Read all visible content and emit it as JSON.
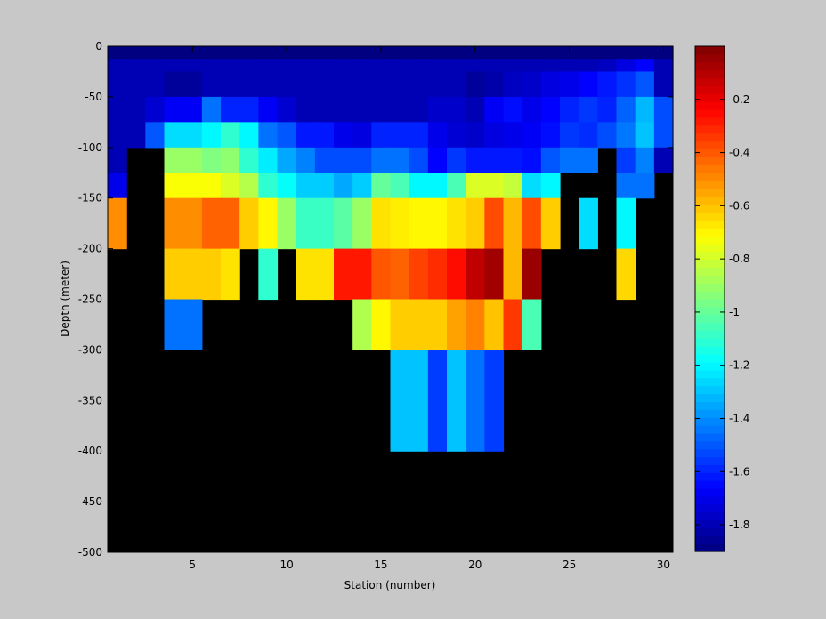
{
  "chart_data": {
    "type": "heatmap",
    "title": "",
    "xlabel": "Station (number)",
    "ylabel": "Depth (meter)",
    "xlim": [
      1,
      31
    ],
    "ylim": [
      -500,
      0
    ],
    "x_ticks": [
      5,
      10,
      15,
      20,
      25,
      30
    ],
    "y_ticks": [
      0,
      -50,
      -100,
      -150,
      -200,
      -250,
      -300,
      -350,
      -400,
      -450,
      -500
    ],
    "colorbar": {
      "colormap": "jet",
      "clim": [
        -1.9,
        0
      ],
      "ticks": [
        -0.2,
        -0.4,
        -0.6,
        -0.8,
        -1,
        -1.2,
        -1.4,
        -1.6,
        -1.8
      ],
      "placement": "right"
    },
    "background_color": "#000000",
    "grid": false,
    "depth_bins": [
      0,
      -12.5,
      -25,
      -50,
      -75,
      -100,
      -125,
      -150,
      -200,
      -250,
      -300,
      -400
    ],
    "stations": [
      1,
      2,
      3,
      4,
      5,
      6,
      7,
      8,
      9,
      10,
      11,
      12,
      13,
      14,
      15,
      16,
      17,
      18,
      19,
      20,
      21,
      22,
      23,
      24,
      25,
      26,
      27,
      28,
      29,
      30
    ],
    "values": [
      [
        -1.9,
        -1.9,
        -1.9,
        -1.9,
        -1.9,
        -1.9,
        -1.9,
        -1.9,
        -1.9,
        -1.9,
        -1.9,
        -1.9,
        -1.9,
        -1.9,
        -1.9,
        -1.9,
        -1.9,
        -1.9,
        -1.9,
        -1.9,
        -1.9,
        -1.9,
        -1.9,
        -1.9,
        -1.9,
        -1.9,
        -1.9,
        -1.9,
        -1.9,
        -1.9
      ],
      [
        -1.8,
        -1.8,
        -1.8,
        -1.8,
        -1.8,
        -1.8,
        -1.8,
        -1.8,
        -1.8,
        -1.8,
        -1.8,
        -1.8,
        -1.8,
        -1.8,
        -1.8,
        -1.8,
        -1.8,
        -1.8,
        -1.8,
        -1.8,
        -1.8,
        -1.8,
        -1.8,
        -1.8,
        -1.8,
        -1.8,
        -1.78,
        -1.72,
        -1.66,
        -1.8
      ],
      [
        -1.8,
        -1.8,
        -1.8,
        -1.85,
        -1.85,
        -1.8,
        -1.8,
        -1.8,
        -1.8,
        -1.8,
        -1.8,
        -1.8,
        -1.8,
        -1.8,
        -1.8,
        -1.8,
        -1.8,
        -1.8,
        -1.8,
        -1.85,
        -1.82,
        -1.78,
        -1.76,
        -1.72,
        -1.7,
        -1.66,
        -1.62,
        -1.57,
        -1.5,
        -1.8
      ],
      [
        -1.8,
        -1.8,
        -1.75,
        -1.68,
        -1.68,
        -1.45,
        -1.6,
        -1.6,
        -1.68,
        -1.75,
        -1.8,
        -1.8,
        -1.8,
        -1.8,
        -1.8,
        -1.8,
        -1.8,
        -1.76,
        -1.76,
        -1.8,
        -1.68,
        -1.64,
        -1.7,
        -1.66,
        -1.6,
        -1.56,
        -1.6,
        -1.48,
        -1.32,
        -1.52
      ],
      [
        -1.8,
        -1.8,
        -1.5,
        -1.25,
        -1.25,
        -1.2,
        -1.1,
        -1.2,
        -1.45,
        -1.5,
        -1.62,
        -1.62,
        -1.7,
        -1.72,
        -1.6,
        -1.6,
        -1.6,
        -1.7,
        -1.74,
        -1.76,
        -1.72,
        -1.7,
        -1.68,
        -1.64,
        -1.56,
        -1.58,
        -1.52,
        -1.44,
        -1.3,
        -1.52
      ],
      [
        -1.8,
        null,
        null,
        -0.9,
        -0.9,
        -0.95,
        -0.92,
        -1.1,
        -1.22,
        -1.35,
        -1.42,
        -1.52,
        -1.52,
        -1.52,
        -1.45,
        -1.45,
        -1.52,
        -1.66,
        -1.56,
        -1.62,
        -1.62,
        -1.62,
        -1.64,
        -1.5,
        -1.45,
        -1.45,
        null,
        -1.55,
        -1.42,
        -1.8
      ],
      [
        -1.7,
        null,
        null,
        -0.72,
        -0.72,
        -0.72,
        -0.78,
        -0.85,
        -1.1,
        -1.18,
        -1.28,
        -1.28,
        -1.35,
        -1.28,
        -1.0,
        -1.05,
        -1.2,
        -1.2,
        -1.05,
        -0.78,
        -0.78,
        -0.82,
        -1.25,
        -1.2,
        null,
        null,
        null,
        -1.45,
        -1.45,
        null
      ],
      [
        -0.5,
        null,
        null,
        -0.5,
        -0.5,
        -0.42,
        -0.42,
        -0.62,
        -0.7,
        -0.9,
        -1.08,
        -1.08,
        -1.02,
        -0.9,
        -0.66,
        -0.68,
        -0.7,
        -0.7,
        -0.66,
        -0.62,
        -0.38,
        -0.58,
        -0.38,
        -0.62,
        null,
        -1.25,
        null,
        -1.2,
        null,
        null
      ],
      [
        null,
        null,
        null,
        -0.62,
        -0.62,
        -0.62,
        -0.66,
        null,
        -1.1,
        null,
        -0.66,
        -0.66,
        -0.28,
        -0.28,
        -0.4,
        -0.42,
        -0.36,
        -0.32,
        -0.26,
        -0.12,
        -0.06,
        -0.58,
        -0.05,
        null,
        null,
        null,
        null,
        -0.64,
        null,
        null
      ],
      [
        null,
        null,
        null,
        -1.45,
        -1.45,
        null,
        null,
        null,
        null,
        null,
        null,
        null,
        null,
        -0.86,
        -0.7,
        -0.62,
        -0.62,
        -0.62,
        -0.54,
        -0.48,
        -0.6,
        -0.34,
        -1.05,
        null,
        null,
        null,
        null,
        null,
        null,
        null
      ],
      [
        null,
        null,
        null,
        null,
        null,
        null,
        null,
        null,
        null,
        null,
        null,
        null,
        null,
        null,
        null,
        -1.3,
        -1.3,
        -1.55,
        -1.3,
        -1.45,
        -1.55,
        null,
        null,
        null,
        null,
        null,
        null,
        null,
        null,
        null
      ]
    ]
  }
}
